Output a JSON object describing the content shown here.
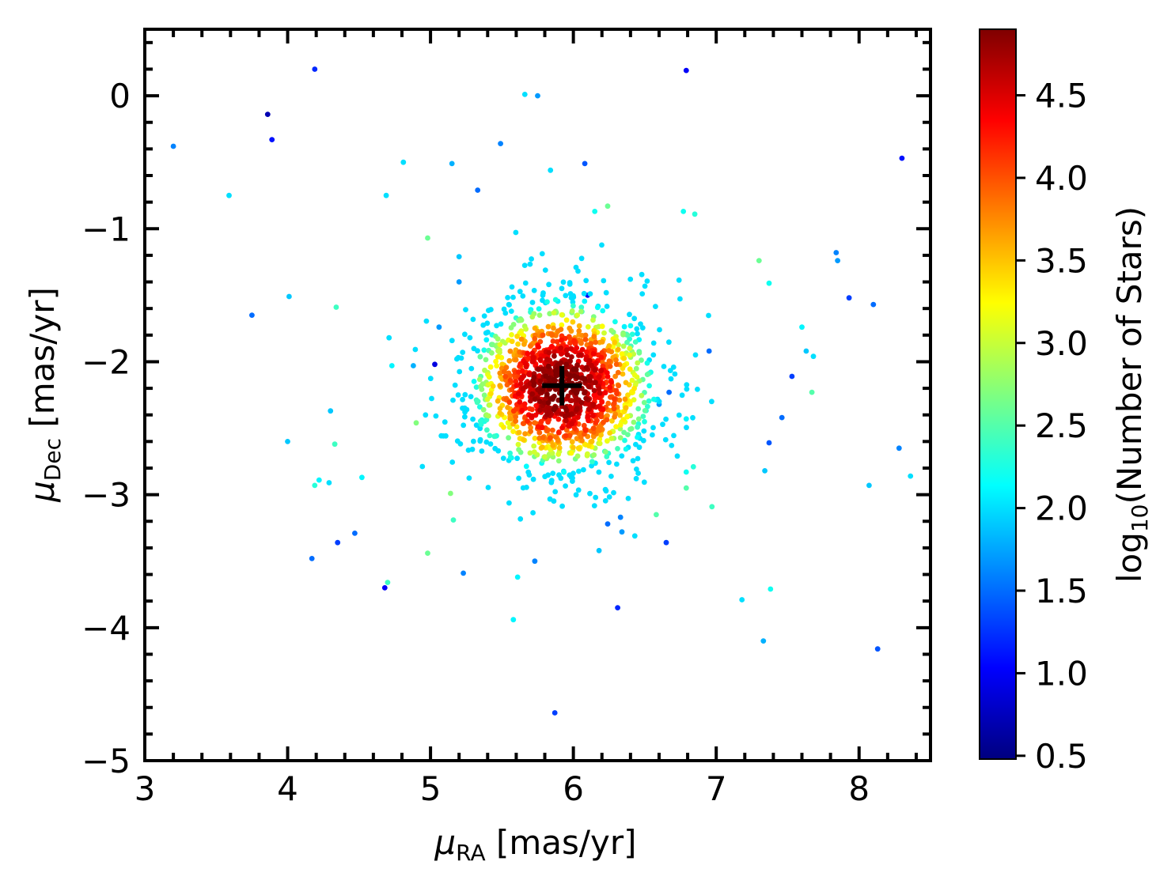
{
  "chart_data": {
    "type": "scatter",
    "x_label": {
      "symbol": "μ",
      "subscript": "RA",
      "unit": " [mas/yr]"
    },
    "y_label": {
      "symbol": "μ",
      "subscript": "Dec",
      "unit": " [mas/yr]"
    },
    "colorbar_label": {
      "prefix": "log",
      "subscript": "10",
      "rest": "(Number of Stars)"
    },
    "xlim": [
      3,
      8.5
    ],
    "ylim": [
      -5,
      0.5
    ],
    "x_ticks": [
      3,
      4,
      5,
      6,
      7,
      8
    ],
    "y_ticks": [
      -5,
      -4,
      -3,
      -2,
      -1,
      0
    ],
    "x_tick_labels": [
      "3",
      "4",
      "5",
      "6",
      "7",
      "8"
    ],
    "y_tick_labels": [
      "−5",
      "−4",
      "−3",
      "−2",
      "−1",
      "0"
    ],
    "colorbar_range": [
      0.48,
      4.9
    ],
    "colorbar_ticks": [
      0.5,
      1.0,
      1.5,
      2.0,
      2.5,
      3.0,
      3.5,
      4.0,
      4.5
    ],
    "colorbar_tick_labels": [
      "0.5",
      "1.0",
      "1.5",
      "2.0",
      "2.5",
      "3.0",
      "3.5",
      "4.0",
      "4.5"
    ],
    "colormap": "jet",
    "grid": false,
    "center_marker": {
      "x": 5.92,
      "y": -2.18,
      "symbol": "+"
    },
    "cluster": {
      "center_x": 5.92,
      "center_y": -2.18,
      "sigma_x": 0.33,
      "sigma_y": 0.33,
      "n_points": 1400,
      "peak_log_count": 4.9
    },
    "outliers": [
      [
        4.19,
        0.2,
        1.2
      ],
      [
        6.79,
        0.19,
        1.0
      ],
      [
        3.86,
        -0.14,
        0.7
      ],
      [
        3.89,
        -0.33,
        1.1
      ],
      [
        3.2,
        -0.38,
        1.6
      ],
      [
        5.66,
        0.01,
        2.0
      ],
      [
        5.75,
        0.0,
        1.7
      ],
      [
        8.3,
        -0.47,
        1.1
      ],
      [
        3.59,
        -0.75,
        2.0
      ],
      [
        4.81,
        -0.5,
        2.0
      ],
      [
        5.15,
        -0.51,
        1.8
      ],
      [
        5.49,
        -0.36,
        1.6
      ],
      [
        5.84,
        -0.56,
        2.0
      ],
      [
        6.08,
        -0.51,
        1.4
      ],
      [
        4.69,
        -0.75,
        2.0
      ],
      [
        5.33,
        -0.71,
        1.5
      ],
      [
        6.15,
        -0.87,
        2.2
      ],
      [
        6.24,
        -0.83,
        2.6
      ],
      [
        6.77,
        -0.87,
        2.2
      ],
      [
        6.85,
        -0.89,
        2.3
      ],
      [
        4.98,
        -1.07,
        2.6
      ],
      [
        5.2,
        -1.21,
        1.9
      ],
      [
        7.84,
        -1.18,
        1.6
      ],
      [
        7.85,
        -1.24,
        1.7
      ],
      [
        7.3,
        -1.24,
        2.6
      ],
      [
        7.37,
        -1.41,
        2.2
      ],
      [
        5.2,
        -1.4,
        1.7
      ],
      [
        4.01,
        -1.51,
        1.9
      ],
      [
        3.75,
        -1.65,
        1.5
      ],
      [
        4.34,
        -1.59,
        2.4
      ],
      [
        6.1,
        -1.5,
        1.0
      ],
      [
        7.93,
        -1.52,
        1.3
      ],
      [
        8.1,
        -1.57,
        1.5
      ],
      [
        7.6,
        -1.74,
        2.1
      ],
      [
        7.63,
        -1.92,
        1.9
      ],
      [
        7.68,
        -1.96,
        2.0
      ],
      [
        7.53,
        -2.11,
        1.3
      ],
      [
        7.67,
        -2.23,
        2.5
      ],
      [
        4.71,
        -1.82,
        2.0
      ],
      [
        4.73,
        -2.03,
        2.1
      ],
      [
        4.88,
        -2.03,
        1.8
      ],
      [
        5.03,
        -2.02,
        0.9
      ],
      [
        5.06,
        -1.74,
        1.7
      ],
      [
        4.3,
        -2.37,
        1.9
      ],
      [
        4.0,
        -2.6,
        1.9
      ],
      [
        4.33,
        -2.62,
        2.4
      ],
      [
        4.22,
        -2.89,
        2.1
      ],
      [
        4.19,
        -2.93,
        2.3
      ],
      [
        4.29,
        -2.91,
        2.0
      ],
      [
        4.52,
        -2.87,
        2.1
      ],
      [
        4.47,
        -3.29,
        1.5
      ],
      [
        4.35,
        -3.36,
        1.3
      ],
      [
        4.17,
        -3.48,
        1.5
      ],
      [
        4.68,
        -3.7,
        1.0
      ],
      [
        4.7,
        -3.66,
        2.4
      ],
      [
        4.98,
        -3.44,
        2.6
      ],
      [
        5.23,
        -3.59,
        1.6
      ],
      [
        5.61,
        -3.62,
        2.1
      ],
      [
        5.73,
        -3.5,
        1.6
      ],
      [
        5.58,
        -3.94,
        2.1
      ],
      [
        5.87,
        -4.64,
        1.3
      ],
      [
        6.31,
        -3.85,
        1.2
      ],
      [
        6.24,
        -3.22,
        1.5
      ],
      [
        6.34,
        -3.28,
        1.7
      ],
      [
        6.33,
        -3.17,
        1.6
      ],
      [
        6.43,
        -3.31,
        2.0
      ],
      [
        6.65,
        -3.36,
        1.3
      ],
      [
        6.18,
        -3.42,
        1.9
      ],
      [
        6.97,
        -3.09,
        2.4
      ],
      [
        7.18,
        -3.79,
        2.0
      ],
      [
        7.38,
        -3.71,
        2.2
      ],
      [
        7.33,
        -4.1,
        1.8
      ],
      [
        8.13,
        -4.16,
        1.4
      ],
      [
        8.28,
        -2.65,
        1.6
      ],
      [
        8.36,
        -2.86,
        2.0
      ],
      [
        8.07,
        -2.93,
        1.9
      ],
      [
        7.34,
        -2.82,
        1.9
      ],
      [
        7.37,
        -2.61,
        1.4
      ],
      [
        7.46,
        -2.42,
        1.5
      ],
      [
        6.95,
        -1.92,
        1.5
      ],
      [
        6.67,
        -2.23,
        1.5
      ],
      [
        6.6,
        -2.32,
        1.7
      ],
      [
        6.79,
        -2.43,
        2.1
      ],
      [
        6.84,
        -2.79,
        2.3
      ],
      [
        6.79,
        -2.83,
        2.2
      ],
      [
        6.79,
        -2.95,
        2.5
      ],
      [
        6.58,
        -3.15,
        2.5
      ],
      [
        5.16,
        -3.19,
        2.4
      ],
      [
        5.14,
        -2.99,
        2.7
      ],
      [
        4.9,
        -2.46,
        2.7
      ]
    ]
  }
}
